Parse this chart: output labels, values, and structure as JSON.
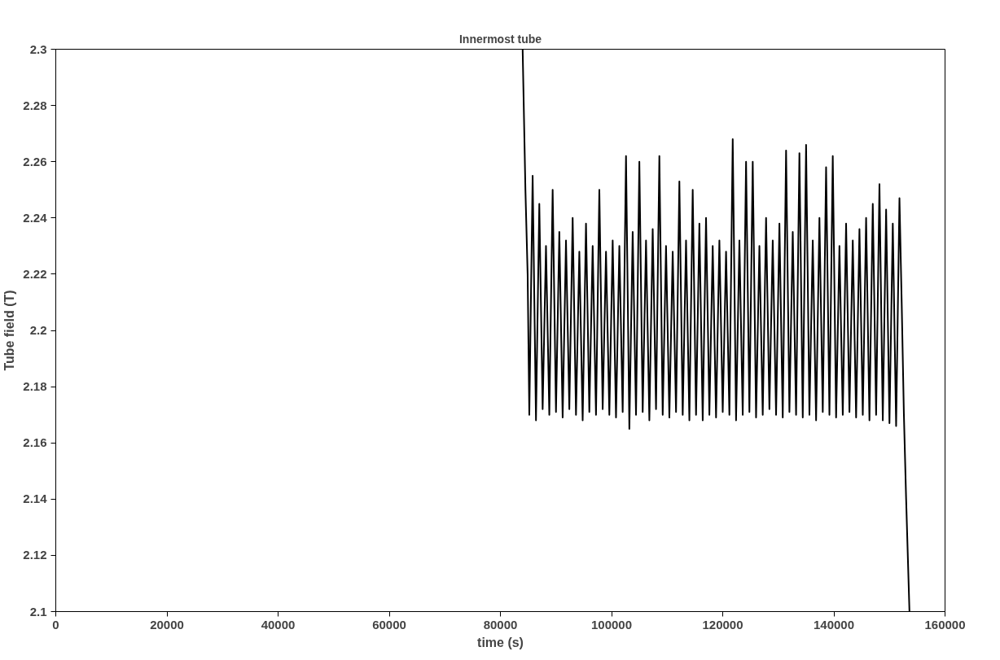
{
  "chart_data": {
    "type": "line",
    "title": "Innermost tube",
    "xlabel": "time (s)",
    "ylabel": "Tube field (T)",
    "xlim": [
      0,
      160000
    ],
    "xticks": [
      0,
      20000,
      40000,
      60000,
      80000,
      100000,
      120000,
      140000,
      160000
    ],
    "ylim": [
      2.1,
      2.3
    ],
    "yticks": [
      2.1,
      2.12,
      2.14,
      2.16,
      2.18,
      2.2,
      2.22,
      2.24,
      2.26,
      2.28,
      2.3
    ],
    "grid": false,
    "marker": "none",
    "line_style": "solid",
    "series": [
      {
        "color": "#000000",
        "x": [
          84000,
          84500,
          84900,
          85200,
          85800,
          86400,
          87000,
          87600,
          88200,
          88800,
          89400,
          90000,
          90600,
          91200,
          91800,
          92400,
          93000,
          93600,
          94200,
          94800,
          95400,
          96000,
          96600,
          97200,
          97800,
          98400,
          99000,
          99600,
          100200,
          100800,
          101400,
          102000,
          102600,
          103200,
          103800,
          104400,
          105000,
          105600,
          106200,
          106800,
          107400,
          108000,
          108600,
          109200,
          109800,
          110400,
          111000,
          111600,
          112200,
          112800,
          113400,
          114000,
          114600,
          115200,
          115800,
          116400,
          117000,
          117600,
          118200,
          118800,
          119400,
          120000,
          120600,
          121200,
          121800,
          122400,
          123000,
          123600,
          124200,
          124800,
          125400,
          126000,
          126600,
          127200,
          127800,
          128400,
          129000,
          129600,
          130200,
          130800,
          131400,
          132000,
          132600,
          133200,
          133800,
          134400,
          135000,
          135600,
          136200,
          136800,
          137400,
          138000,
          138600,
          139200,
          139800,
          140400,
          141000,
          141600,
          142200,
          142800,
          143400,
          144000,
          144600,
          145200,
          145800,
          146400,
          147000,
          147600,
          148200,
          148800,
          149400,
          150000,
          150600,
          151200,
          151800,
          152200,
          152600,
          153000,
          153600
        ],
        "values": [
          2.3,
          2.25,
          2.22,
          2.17,
          2.255,
          2.168,
          2.245,
          2.172,
          2.23,
          2.17,
          2.25,
          2.171,
          2.235,
          2.169,
          2.232,
          2.172,
          2.24,
          2.17,
          2.228,
          2.168,
          2.238,
          2.171,
          2.23,
          2.17,
          2.25,
          2.172,
          2.228,
          2.17,
          2.232,
          2.169,
          2.23,
          2.171,
          2.262,
          2.165,
          2.235,
          2.17,
          2.26,
          2.171,
          2.232,
          2.168,
          2.236,
          2.172,
          2.262,
          2.17,
          2.23,
          2.169,
          2.228,
          2.171,
          2.253,
          2.17,
          2.232,
          2.168,
          2.25,
          2.17,
          2.238,
          2.168,
          2.24,
          2.17,
          2.23,
          2.169,
          2.232,
          2.171,
          2.228,
          2.17,
          2.268,
          2.168,
          2.232,
          2.17,
          2.26,
          2.171,
          2.26,
          2.169,
          2.23,
          2.17,
          2.24,
          2.172,
          2.232,
          2.17,
          2.238,
          2.169,
          2.264,
          2.171,
          2.235,
          2.17,
          2.263,
          2.169,
          2.266,
          2.17,
          2.232,
          2.168,
          2.24,
          2.171,
          2.258,
          2.17,
          2.262,
          2.169,
          2.23,
          2.17,
          2.238,
          2.171,
          2.232,
          2.169,
          2.236,
          2.17,
          2.24,
          2.168,
          2.245,
          2.17,
          2.252,
          2.168,
          2.243,
          2.167,
          2.238,
          2.166,
          2.247,
          2.21,
          2.17,
          2.14,
          2.1
        ]
      }
    ]
  }
}
